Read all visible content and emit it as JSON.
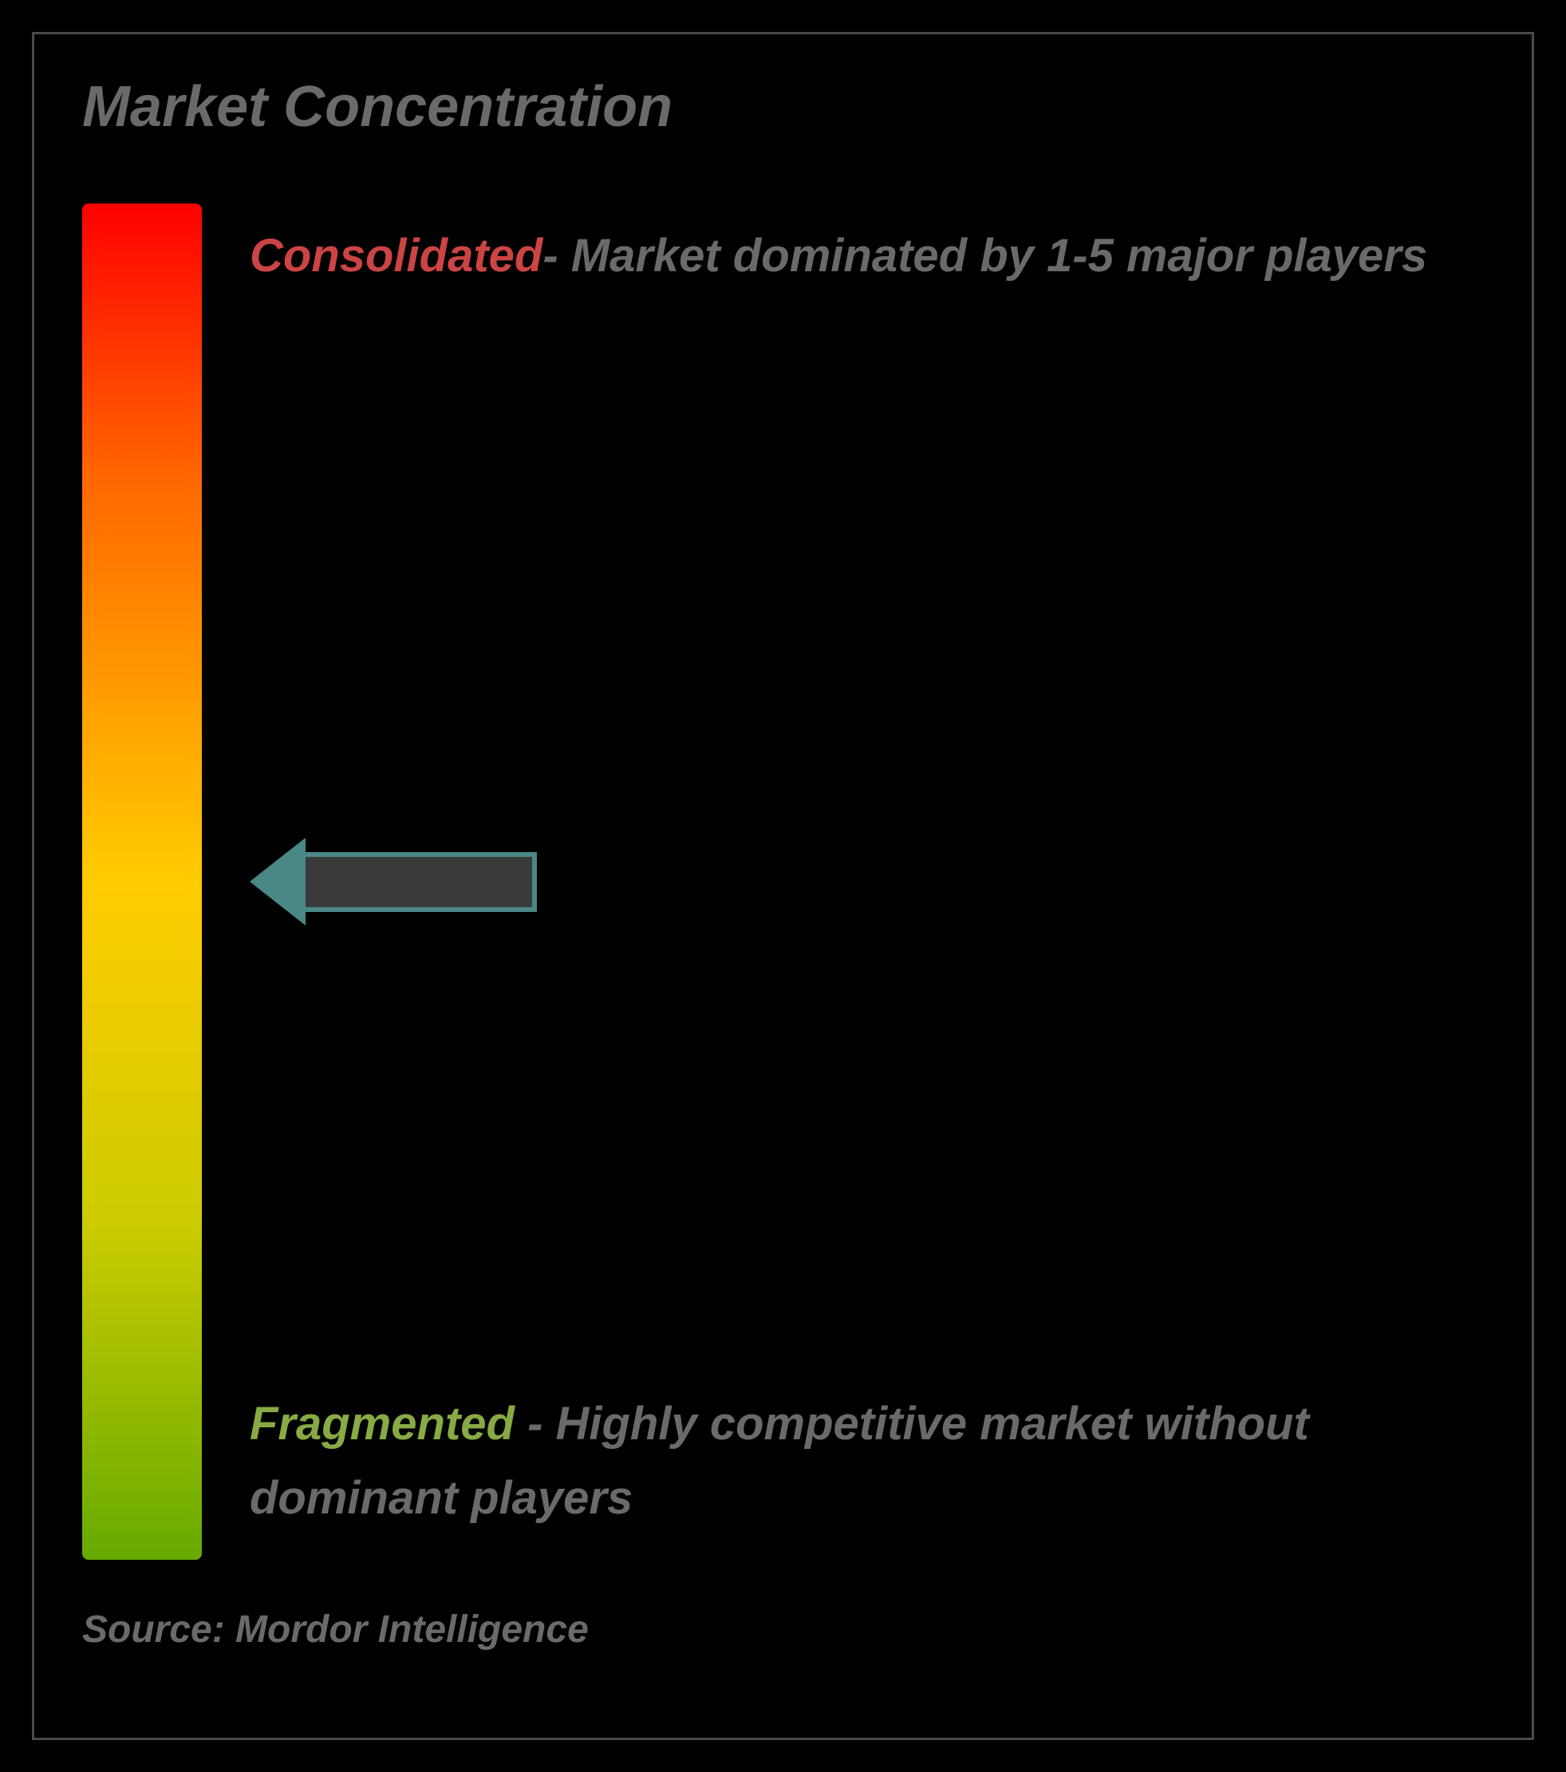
{
  "title": "Market Concentration",
  "gradient": {
    "top_color": "#ff0000",
    "mid_top_color": "#ff6600",
    "mid_color": "#ffcc00",
    "mid_bottom_color": "#cccc00",
    "bottom_color": "#66aa00"
  },
  "consolidated": {
    "label": "Consolidated",
    "label_color": "#cc4444",
    "description": "- Market dominated by 1-5 major players"
  },
  "fragmented": {
    "label": "Fragmented",
    "label_color": "#88aa44",
    "description": " - Highly competitive market without dominant players"
  },
  "arrow": {
    "border_color": "#4a8888",
    "fill_color": "#3a3a3a",
    "position_percent": 50
  },
  "source": "Source: Mordor Intelligence",
  "colors": {
    "background": "#000000",
    "border": "#4a4a4a",
    "text_muted": "#6a6a6a"
  }
}
